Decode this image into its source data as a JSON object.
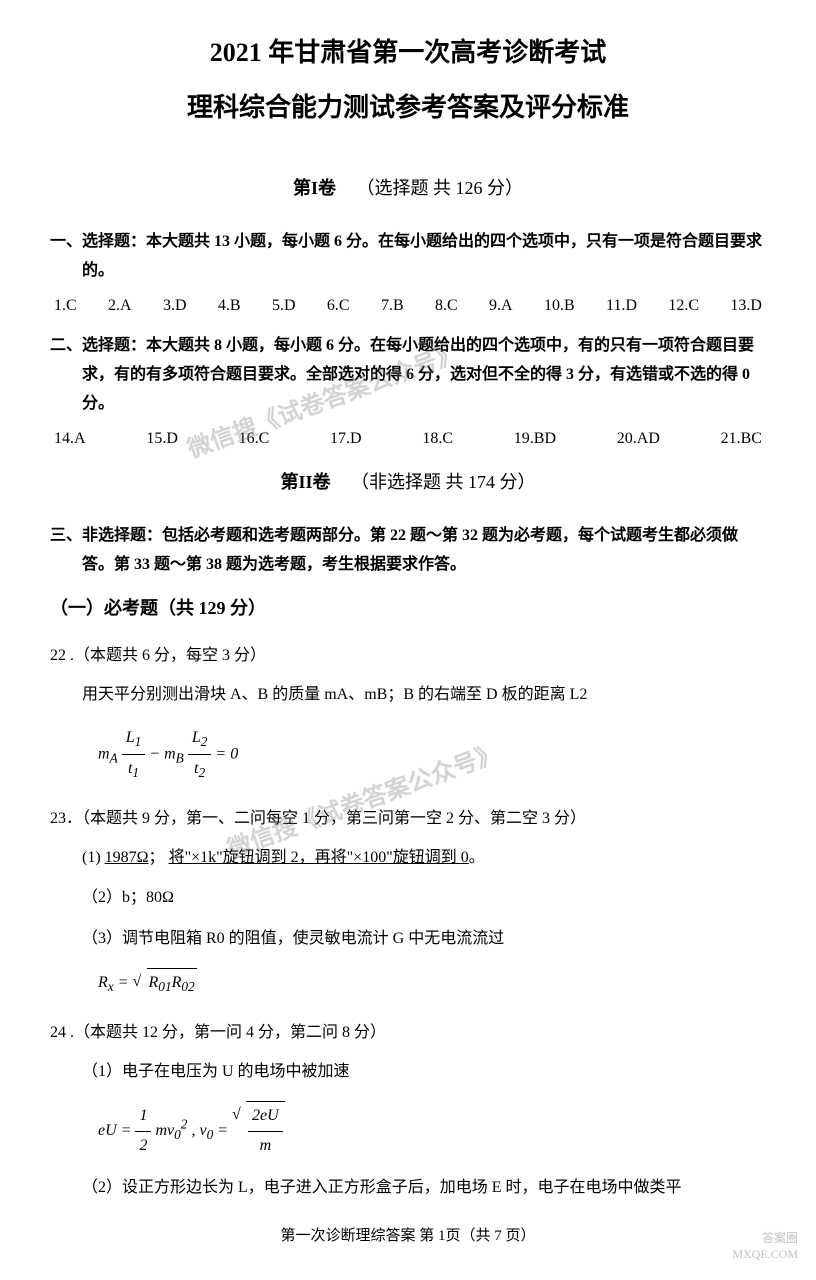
{
  "header": {
    "title": "2021 年甘肃省第一次高考诊断考试",
    "subtitle": "理科综合能力测试参考答案及评分标准"
  },
  "volume1": {
    "label": "第I卷",
    "description": "（选择题 共 126 分）"
  },
  "section1": {
    "header": "一、选择题：本大题共 13 小题，每小题 6 分。在每小题给出的四个选项中，只有一项是符合题目要求的。",
    "answers": [
      "1.C",
      "2.A",
      "3.D",
      "4.B",
      "5.D",
      "6.C",
      "7.B",
      "8.C",
      "9.A",
      "10.B",
      "11.D",
      "12.C",
      "13.D"
    ]
  },
  "section2": {
    "header": "二、选择题：本大题共 8 小题，每小题 6 分。在每小题给出的四个选项中，有的只有一项符合题目要求，有的有多项符合题目要求。全部选对的得 6 分，选对但不全的得 3 分，有选错或不选的得 0 分。",
    "answers": [
      "14.A",
      "15.D",
      "16.C",
      "17.D",
      "18.C",
      "19.BD",
      "20.AD",
      "21.BC"
    ]
  },
  "volume2": {
    "label": "第II卷",
    "description": "（非选择题 共 174 分）"
  },
  "section3": {
    "header": "三、非选择题：包括必考题和选考题两部分。第 22 题～第 32 题为必考题，每个试题考生都必须做答。第 33 题～第 38 题为选考题，考生根据要求作答。"
  },
  "required": {
    "header": "（一）必考题（共 129 分）"
  },
  "q22": {
    "title": "22 .（本题共 6 分，每空 3 分）",
    "body": "用天平分别测出滑块 A、B 的质量 mA、mB；B 的右端至 D 板的距离 L2",
    "formula_mA": "m",
    "formula_A": "A",
    "formula_L1": "L",
    "formula_1a": "1",
    "formula_t1": "t",
    "formula_1b": "1",
    "formula_minus": " − ",
    "formula_mB": "m",
    "formula_B": "B",
    "formula_L2": "L",
    "formula_2a": "2",
    "formula_t2": "t",
    "formula_2b": "2",
    "formula_eq": " = 0"
  },
  "q23": {
    "title": "23．（本题共 9 分，第一、二问每空 1 分，第三问第一空 2 分、第二空 3 分）",
    "item1_a": "(1)  ",
    "item1_b": "1987Ω",
    "item1_c": "； ",
    "item1_d": "将\"×1k\"旋钮调到 2，再将\"×100\"旋钮调到 0",
    "item1_e": "。",
    "item2": "（2）b；80Ω",
    "item3": "（3）调节电阻箱 R0 的阻值，使灵敏电流计 G 中无电流流过",
    "formula_Rx": "R",
    "formula_x": "x",
    "formula_eq": " = ",
    "formula_R01": "R",
    "formula_01": "01",
    "formula_R02": "R",
    "formula_02": "02"
  },
  "q24": {
    "title": "24 .（本题共 12 分，第一问 4 分，第二问 8 分）",
    "item1": "（1）电子在电压为 U 的电场中被加速",
    "formula_eU": "eU = ",
    "formula_half": "1",
    "formula_two": "2",
    "formula_mv": "mv",
    "formula_0a": "0",
    "formula_sq": "2",
    "formula_comma": " ,   ",
    "formula_v0": "v",
    "formula_0b": "0",
    "formula_eq2": " = ",
    "formula_2eU": "2eU",
    "formula_m": "m",
    "item2": "（2）设正方形边长为 L，电子进入正方形盒子后，加电场 E 时，电子在电场中做类平"
  },
  "footer": {
    "text": "第一次诊断理综答案  第 1页（共 7 页）"
  },
  "watermark": {
    "text": "微信搜《试卷答案公众号》",
    "corner1": "答案圈",
    "corner2": "MXQE.COM"
  }
}
